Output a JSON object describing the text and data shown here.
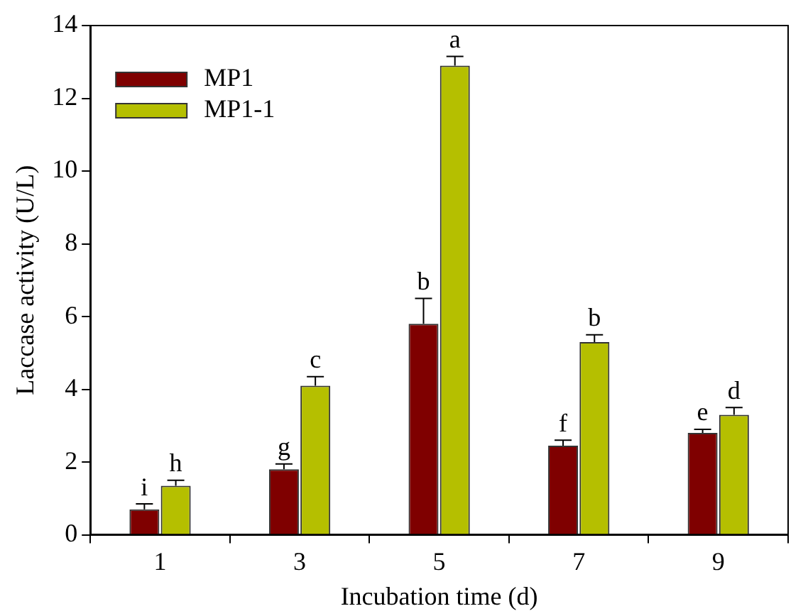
{
  "chart_data": {
    "type": "bar",
    "xlabel": "Incubation time (d)",
    "ylabel": "Laccase activity (U/L)",
    "categories": [
      "1",
      "3",
      "5",
      "7",
      "9"
    ],
    "series": [
      {
        "name": "MP1",
        "color": "#7f0000",
        "values": [
          0.7,
          1.8,
          5.8,
          2.45,
          2.8
        ],
        "errors": [
          0.15,
          0.15,
          0.7,
          0.15,
          0.1
        ],
        "value_labels": [
          "i",
          "g",
          "b",
          "f",
          "e"
        ]
      },
      {
        "name": "MP1-1",
        "color": "#b5bf00",
        "values": [
          1.35,
          4.1,
          12.9,
          5.3,
          3.3
        ],
        "errors": [
          0.15,
          0.25,
          0.25,
          0.2,
          0.2
        ],
        "value_labels": [
          "h",
          "c",
          "a",
          "b",
          "d"
        ]
      }
    ],
    "ylim": [
      0,
      14
    ],
    "yticks": [
      0,
      2,
      4,
      6,
      8,
      10,
      12,
      14
    ],
    "grid": false,
    "legend": "top left"
  }
}
